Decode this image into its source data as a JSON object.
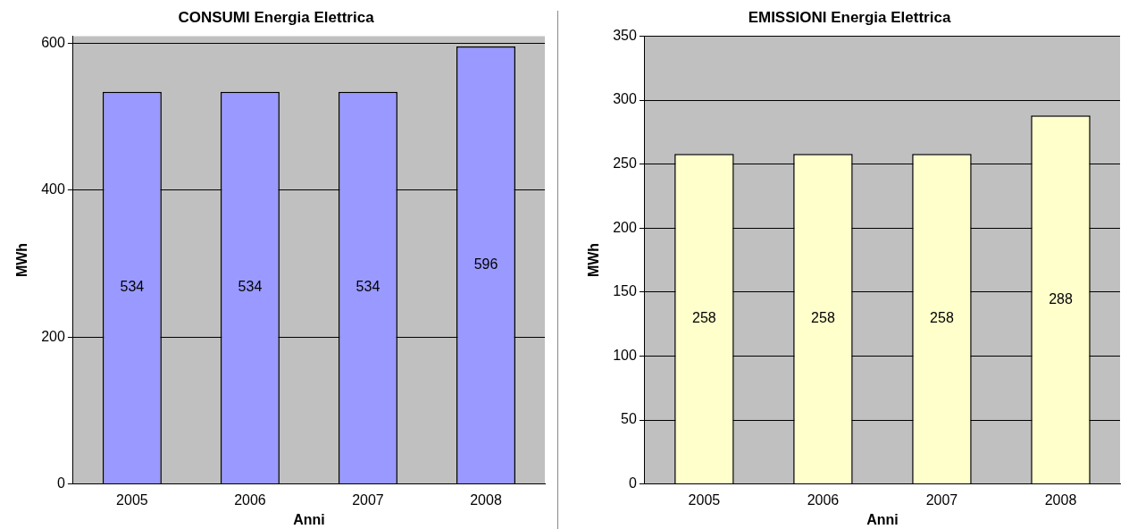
{
  "chart_data": [
    {
      "type": "bar",
      "title": "CONSUMI Energia Elettrica",
      "xlabel": "Anni",
      "ylabel": "MWh",
      "categories": [
        "2005",
        "2006",
        "2007",
        "2008"
      ],
      "values": [
        534,
        534,
        534,
        596
      ],
      "color": "#9999ff",
      "ylim": [
        0,
        610
      ],
      "yticks": [
        0,
        200,
        400,
        600
      ],
      "grid": "y",
      "legend": false,
      "data_labels": true
    },
    {
      "type": "bar",
      "title": "EMISSIONI Energia Elettrica",
      "xlabel": "Anni",
      "ylabel": "MWh",
      "categories": [
        "2005",
        "2006",
        "2007",
        "2008"
      ],
      "values": [
        258,
        258,
        258,
        288
      ],
      "color": "#ffffcc",
      "ylim": [
        0,
        350
      ],
      "yticks": [
        0,
        50,
        100,
        150,
        200,
        250,
        300,
        350
      ],
      "grid": "y",
      "legend": false,
      "data_labels": true
    }
  ]
}
